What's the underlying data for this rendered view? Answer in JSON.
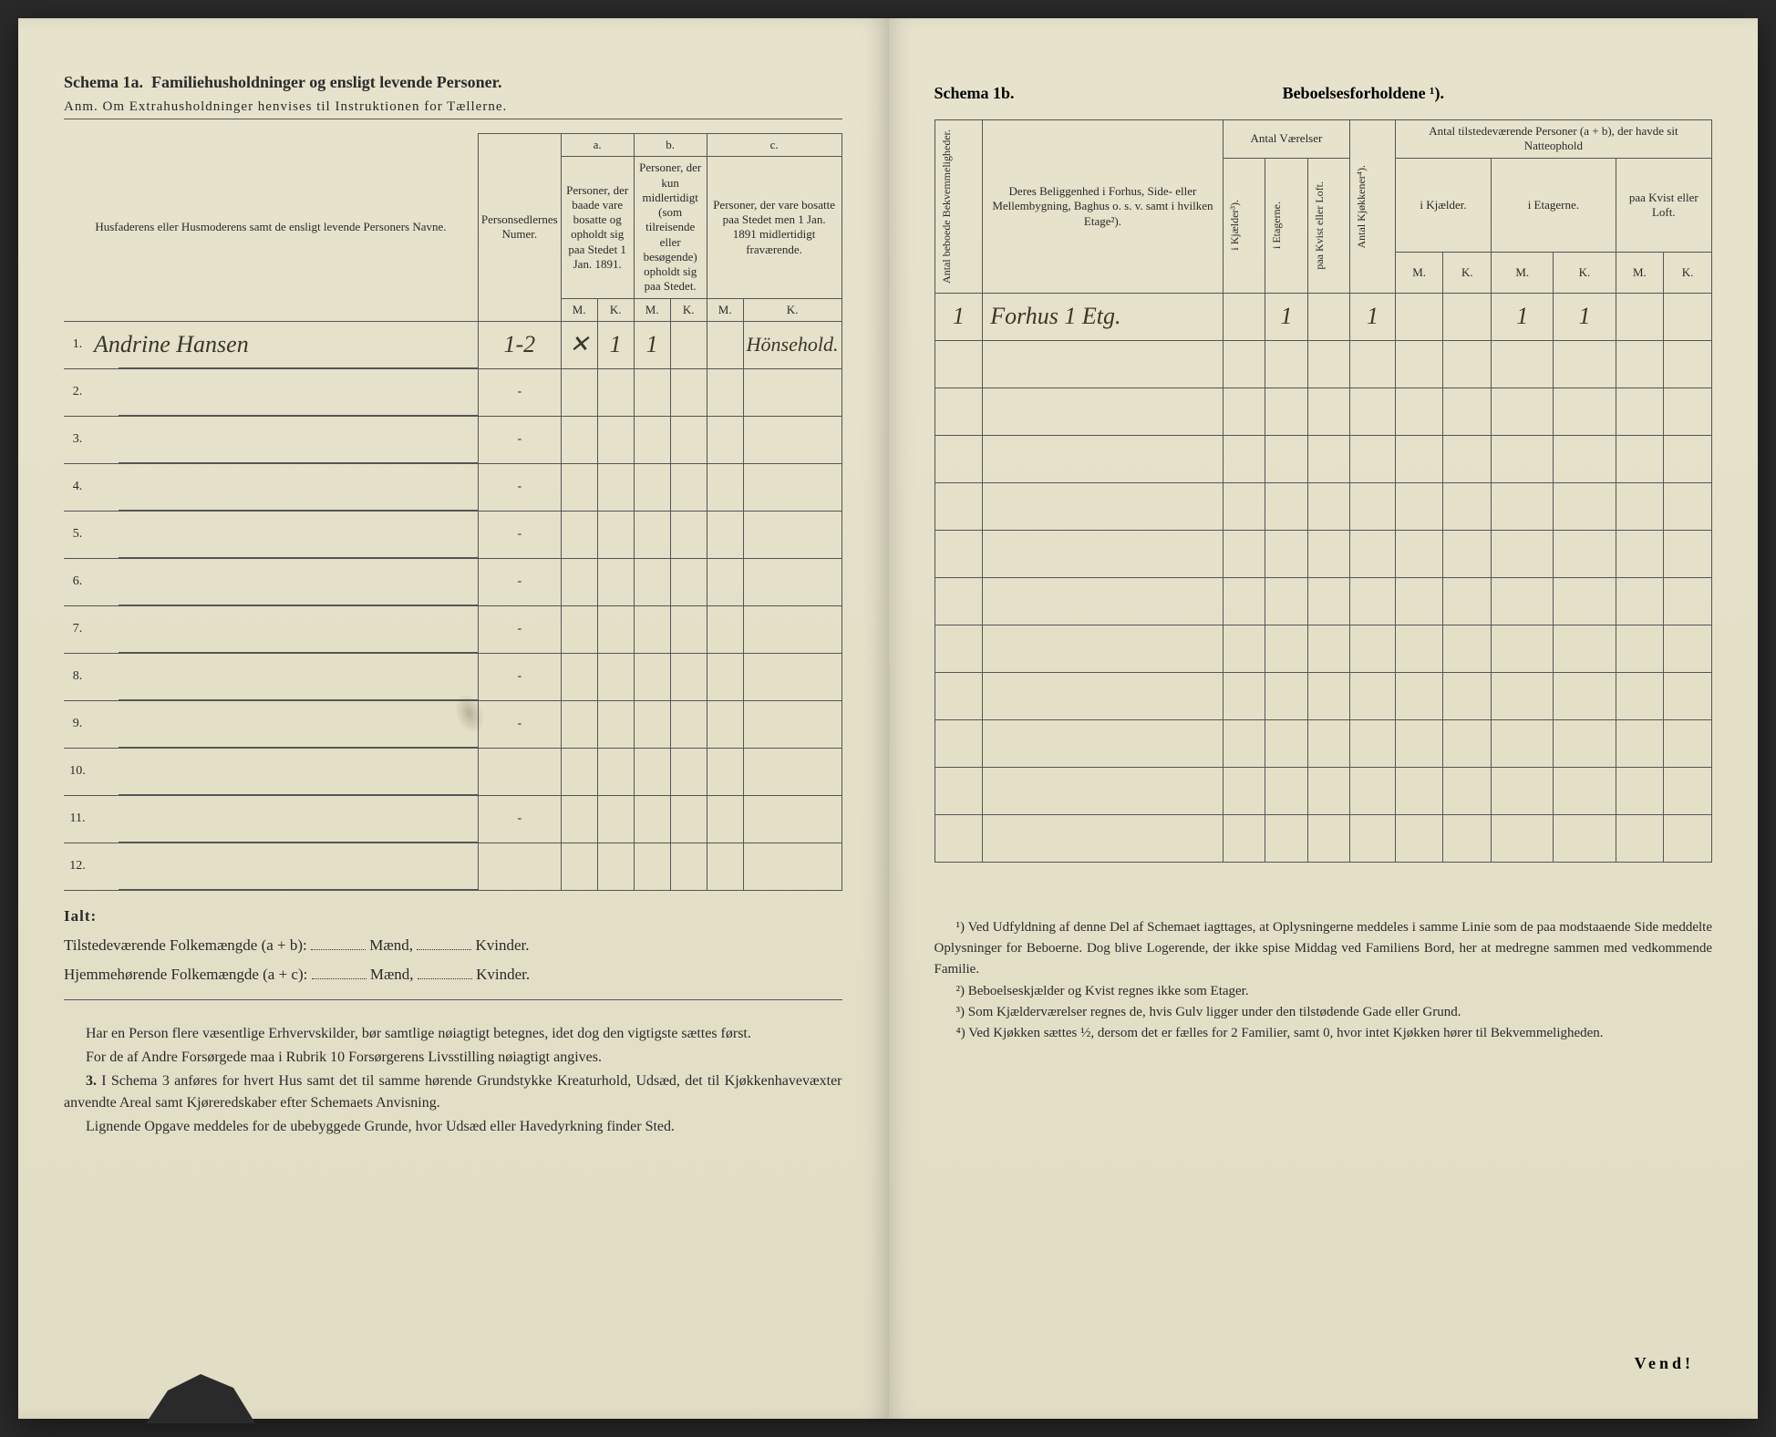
{
  "left": {
    "schema_label": "Schema 1a.",
    "schema_title": "Familiehusholdninger og ensligt levende Personer.",
    "anm": "Anm. Om Extrahusholdninger henvises til Instruktionen for Tællerne.",
    "headers": {
      "col1": "Husfaderens eller Husmoderens samt de ensligt levende Personers Navne.",
      "col2": "Personsedlernes Numer.",
      "group_a": "a.",
      "group_a_text": "Personer, der baade vare bosatte og opholdt sig paa Stedet 1 Jan. 1891.",
      "group_b": "b.",
      "group_b_text": "Personer, der kun midlertidigt (som tilreisende eller besøgende) opholdt sig paa Stedet.",
      "group_c": "c.",
      "group_c_text": "Personer, der vare bosatte paa Stedet men 1 Jan. 1891 midlertidigt fraværende.",
      "M": "M.",
      "K": "K."
    },
    "rows": [
      {
        "n": "1.",
        "name": "Andrine Hansen",
        "num": "1-2",
        "aM": "✕",
        "aK": "1",
        "bM": "1",
        "bK": "",
        "cM": "",
        "cK": "Hönsehold."
      },
      {
        "n": "2.",
        "name": "",
        "num": "-",
        "aM": "",
        "aK": "",
        "bM": "",
        "bK": "",
        "cM": "",
        "cK": ""
      },
      {
        "n": "3.",
        "name": "",
        "num": "-",
        "aM": "",
        "aK": "",
        "bM": "",
        "bK": "",
        "cM": "",
        "cK": ""
      },
      {
        "n": "4.",
        "name": "",
        "num": "-",
        "aM": "",
        "aK": "",
        "bM": "",
        "bK": "",
        "cM": "",
        "cK": ""
      },
      {
        "n": "5.",
        "name": "",
        "num": "-",
        "aM": "",
        "aK": "",
        "bM": "",
        "bK": "",
        "cM": "",
        "cK": ""
      },
      {
        "n": "6.",
        "name": "",
        "num": "-",
        "aM": "",
        "aK": "",
        "bM": "",
        "bK": "",
        "cM": "",
        "cK": ""
      },
      {
        "n": "7.",
        "name": "",
        "num": "-",
        "aM": "",
        "aK": "",
        "bM": "",
        "bK": "",
        "cM": "",
        "cK": ""
      },
      {
        "n": "8.",
        "name": "",
        "num": "-",
        "aM": "",
        "aK": "",
        "bM": "",
        "bK": "",
        "cM": "",
        "cK": ""
      },
      {
        "n": "9.",
        "name": "",
        "num": "-",
        "aM": "",
        "aK": "",
        "bM": "",
        "bK": "",
        "cM": "",
        "cK": ""
      },
      {
        "n": "10.",
        "name": "",
        "num": "",
        "aM": "",
        "aK": "",
        "bM": "",
        "bK": "",
        "cM": "",
        "cK": ""
      },
      {
        "n": "11.",
        "name": "",
        "num": "-",
        "aM": "",
        "aK": "",
        "bM": "",
        "bK": "",
        "cM": "",
        "cK": ""
      },
      {
        "n": "12.",
        "name": "",
        "num": "",
        "aM": "",
        "aK": "",
        "bM": "",
        "bK": "",
        "cM": "",
        "cK": ""
      }
    ],
    "ialt": "Ialt:",
    "tilstede_label": "Tilstedeværende Folkemængde (a + b):",
    "hjemme_label": "Hjemmehørende Folkemængde (a + c):",
    "maend": "Mænd,",
    "kvinder": "Kvinder.",
    "tilstede_m": "",
    "tilstede_k": "",
    "hjemme_m": "",
    "hjemme_k": "",
    "para1": "Har en Person flere væsentlige Erhvervskilder, bør samtlige nøiagtigt betegnes, idet dog den vigtigste sættes først.",
    "para2": "For de af Andre Forsørgede maa i Rubrik 10 Forsørgerens Livsstilling nøiagtigt angives.",
    "para3_label": "3.",
    "para3": "I Schema 3 anføres for hvert Hus samt det til samme hørende Grundstykke Kreaturhold, Udsæd, det til Kjøkkenhavevæxter anvendte Areal samt Kjøreredskaber efter Schemaets Anvisning.",
    "para4": "Lignende Opgave meddeles for de ubebyggede Grunde, hvor Udsæd eller Havedyrkning finder Sted."
  },
  "right": {
    "schema_label": "Schema 1b.",
    "schema_title": "Beboelsesforholdene ¹).",
    "headers": {
      "col1": "Antal beboede Bekvemmeligheder.",
      "col2": "Deres Beliggenhed i Forhus, Side- eller Mellembygning, Baghus o. s. v. samt i hvilken Etage²).",
      "group_vaer": "Antal Værelser",
      "col_kjaelder": "i Kjælder³).",
      "col_etagerne": "i Etagerne.",
      "col_kvist": "paa Kvist eller Loft.",
      "col_kjokken": "Antal Kjøkkener⁴).",
      "group_personer": "Antal tilstedeværende Personer (a + b), der havde sit Natteophold",
      "sub_kjael": "i Kjælder.",
      "sub_etag": "i Etagerne.",
      "sub_kvist": "paa Kvist eller Loft.",
      "M": "M.",
      "K": "K."
    },
    "rows": [
      {
        "c1": "1",
        "c2": "Forhus 1 Etg.",
        "kj": "",
        "et": "1",
        "kv": "",
        "kk": "1",
        "km": "",
        "kk2": "",
        "em": "1",
        "ek": "1",
        "lm": "",
        "lk": ""
      },
      {
        "c1": "",
        "c2": "",
        "kj": "",
        "et": "",
        "kv": "",
        "kk": "",
        "km": "",
        "kk2": "",
        "em": "",
        "ek": "",
        "lm": "",
        "lk": ""
      },
      {
        "c1": "",
        "c2": "",
        "kj": "",
        "et": "",
        "kv": "",
        "kk": "",
        "km": "",
        "kk2": "",
        "em": "",
        "ek": "",
        "lm": "",
        "lk": ""
      },
      {
        "c1": "",
        "c2": "",
        "kj": "",
        "et": "",
        "kv": "",
        "kk": "",
        "km": "",
        "kk2": "",
        "em": "",
        "ek": "",
        "lm": "",
        "lk": ""
      },
      {
        "c1": "",
        "c2": "",
        "kj": "",
        "et": "",
        "kv": "",
        "kk": "",
        "km": "",
        "kk2": "",
        "em": "",
        "ek": "",
        "lm": "",
        "lk": ""
      },
      {
        "c1": "",
        "c2": "",
        "kj": "",
        "et": "",
        "kv": "",
        "kk": "",
        "km": "",
        "kk2": "",
        "em": "",
        "ek": "",
        "lm": "",
        "lk": ""
      },
      {
        "c1": "",
        "c2": "",
        "kj": "",
        "et": "",
        "kv": "",
        "kk": "",
        "km": "",
        "kk2": "",
        "em": "",
        "ek": "",
        "lm": "",
        "lk": ""
      },
      {
        "c1": "",
        "c2": "",
        "kj": "",
        "et": "",
        "kv": "",
        "kk": "",
        "km": "",
        "kk2": "",
        "em": "",
        "ek": "",
        "lm": "",
        "lk": ""
      },
      {
        "c1": "",
        "c2": "",
        "kj": "",
        "et": "",
        "kv": "",
        "kk": "",
        "km": "",
        "kk2": "",
        "em": "",
        "ek": "",
        "lm": "",
        "lk": ""
      },
      {
        "c1": "",
        "c2": "",
        "kj": "",
        "et": "",
        "kv": "",
        "kk": "",
        "km": "",
        "kk2": "",
        "em": "",
        "ek": "",
        "lm": "",
        "lk": ""
      },
      {
        "c1": "",
        "c2": "",
        "kj": "",
        "et": "",
        "kv": "",
        "kk": "",
        "km": "",
        "kk2": "",
        "em": "",
        "ek": "",
        "lm": "",
        "lk": ""
      },
      {
        "c1": "",
        "c2": "",
        "kj": "",
        "et": "",
        "kv": "",
        "kk": "",
        "km": "",
        "kk2": "",
        "em": "",
        "ek": "",
        "lm": "",
        "lk": ""
      }
    ],
    "fn1": "¹) Ved Udfyldning af denne Del af Schemaet iagttages, at Oplysningerne meddeles i samme Linie som de paa modstaaende Side meddelte Oplysninger for Beboerne. Dog blive Logerende, der ikke spise Middag ved Familiens Bord, her at medregne sammen med vedkommende Familie.",
    "fn2": "²) Beboelseskjælder og Kvist regnes ikke som Etager.",
    "fn3": "³) Som Kjælderværelser regnes de, hvis Gulv ligger under den tilstødende Gade eller Grund.",
    "fn4": "⁴) Ved Kjøkken sættes ½, dersom det er fælles for 2 Familier, samt 0, hvor intet Kjøkken hører til Bekvemmeligheden.",
    "vend": "Vend!"
  },
  "colors": {
    "paper": "#e6e2cc",
    "ink": "#2a2a2a",
    "rule": "#555555",
    "handwriting": "#3a3628"
  }
}
